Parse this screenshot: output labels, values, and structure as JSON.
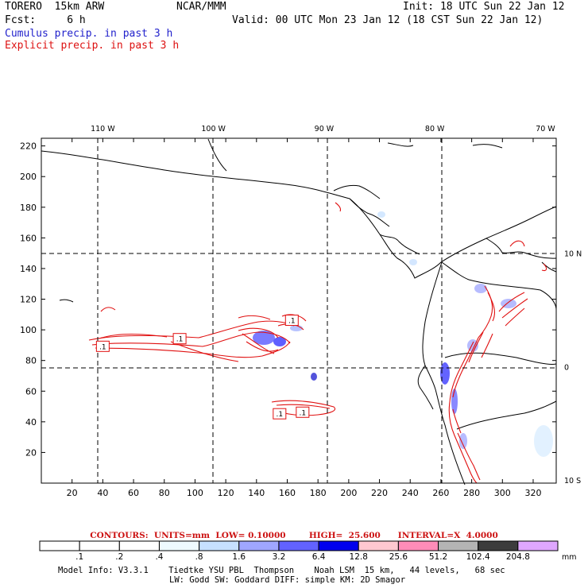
{
  "header": {
    "model_line": "TORERO  15km ARW",
    "org": "NCAR/MMM",
    "init": "Init: 18 UTC Sun 22 Jan 12",
    "fcst": "Fcst:     6 h",
    "valid": "Valid: 00 UTC Mon 23 Jan 12 (18 CST Sun 22 Jan 12)",
    "field1": "Cumulus precip. in past 3 h",
    "field2": "Explicit precip. in past 3 h"
  },
  "chart_data": {
    "type": "map",
    "x_ticks": [
      "20",
      "40",
      "60",
      "80",
      "100",
      "120",
      "140",
      "160",
      "180",
      "200",
      "220",
      "240",
      "260",
      "280",
      "300",
      "320"
    ],
    "y_ticks": [
      "20",
      "40",
      "60",
      "80",
      "100",
      "120",
      "140",
      "160",
      "180",
      "200",
      "220"
    ],
    "xlim": [
      0,
      335
    ],
    "ylim": [
      0,
      225
    ],
    "lon_labels": [
      {
        "label": "110 W",
        "x": 40
      },
      {
        "label": "100 W",
        "x": 112
      },
      {
        "label": "90 W",
        "x": 184
      },
      {
        "label": "80 W",
        "x": 256
      },
      {
        "label": "70 W",
        "x": 328
      }
    ],
    "lat_labels": [
      {
        "label": "10 N",
        "y": 150
      },
      {
        "label": "0",
        "y": 76
      },
      {
        "label": "10 S",
        "y": 2
      }
    ],
    "contour_labels": [
      {
        "text": ".1",
        "x": 40,
        "y": 89
      },
      {
        "text": ".1",
        "x": 90,
        "y": 94
      },
      {
        "text": ".1",
        "x": 163,
        "y": 106
      },
      {
        "text": ".1",
        "x": 155,
        "y": 45
      },
      {
        "text": ".1",
        "x": 170,
        "y": 46
      }
    ],
    "contour_line": "CONTOURS:  UNITS=mm  LOW= 0.10000        HIGH=  25.600      INTERVAL=X  4.0000",
    "colorbar": {
      "ticks": [
        ".1",
        ".2",
        ".4",
        ".8",
        "1.6",
        "3.2",
        "6.4",
        "12.8",
        "25.6",
        "51.2",
        "102.4",
        "204.8"
      ],
      "colors": [
        "#ffffff",
        "#ffffff",
        "#ffffff",
        "#eefaff",
        "#c6e0ff",
        "#9fa6ff",
        "#6262ff",
        "#0000ee",
        "#ffc8d0",
        "#ff8cb8",
        "#b4b4b4",
        "#3c3c3c",
        "#dfa7ff"
      ],
      "unit": "mm"
    }
  },
  "footer": {
    "line1": "Model Info: V3.3.1    Tiedtke YSU PBL  Thompson    Noah LSM  15 km,   44 levels,   68 sec",
    "line2": "LW: Godd SW: Goddard DIFF: simple KM: 2D Smagor"
  }
}
